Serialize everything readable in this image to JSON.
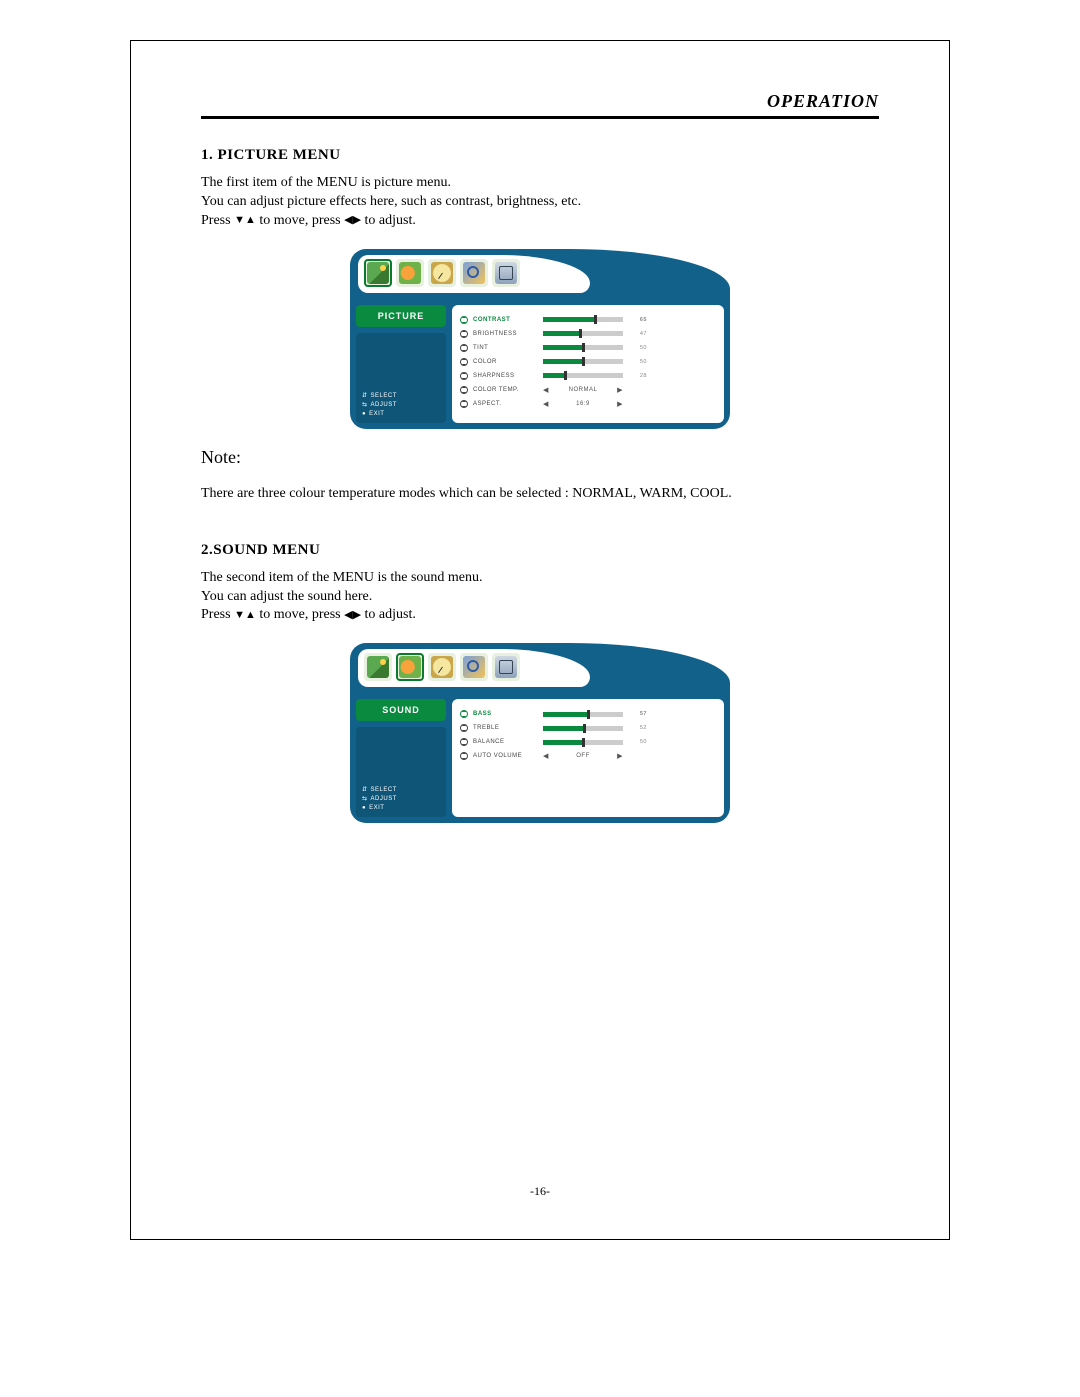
{
  "page": {
    "header": "OPERATION",
    "number": "-16-"
  },
  "section1": {
    "heading": "1. PICTURE MENU",
    "line1": "The first item of the MENU is picture menu.",
    "line2": "You can adjust picture effects here, such as contrast, brightness, etc.",
    "press_a": "Press ",
    "press_b": " to move, press ",
    "press_c": " to adjust."
  },
  "note": {
    "label": "Note:",
    "text": "There are  three colour  temperature modes which can be selected : NORMAL, WARM, COOL."
  },
  "section2": {
    "heading": "2.SOUND MENU",
    "line1": "The second item of the MENU is the sound menu.",
    "line2": "You can adjust the sound here.",
    "press_a": "Press  ",
    "press_b": "  to move, press  ",
    "press_c": "   to adjust."
  },
  "osd": {
    "hints": {
      "select": "SELECT",
      "adjust": "ADJUST",
      "exit": "EXIT"
    },
    "tabs": [
      "picture",
      "sound",
      "clock",
      "function",
      "tv"
    ]
  },
  "picture_menu": {
    "title": "PICTURE",
    "active_tab": 0,
    "rows": [
      {
        "label": "CONTRAST",
        "type": "slider",
        "value": 65,
        "active": true
      },
      {
        "label": "BRIGHTNESS",
        "type": "slider",
        "value": 47
      },
      {
        "label": "TINT",
        "type": "slider",
        "value": 50
      },
      {
        "label": "COLOR",
        "type": "slider",
        "value": 50
      },
      {
        "label": "SHARPNESS",
        "type": "slider",
        "value": 28
      },
      {
        "label": "COLOR TEMP.",
        "type": "choice",
        "text": "NORMAL"
      },
      {
        "label": "ASPECT.",
        "type": "choice",
        "text": "16:9"
      }
    ]
  },
  "sound_menu": {
    "title": "SOUND",
    "active_tab": 1,
    "rows": [
      {
        "label": "BASS",
        "type": "slider",
        "value": 57,
        "active": true
      },
      {
        "label": "TREBLE",
        "type": "slider",
        "value": 52
      },
      {
        "label": "BALANCE",
        "type": "slider",
        "value": 50
      },
      {
        "label": "AUTO VOLUME",
        "type": "choice",
        "text": "OFF"
      }
    ]
  },
  "colors": {
    "osd_bg": "#11618a",
    "accent": "#0a8a3e",
    "slider_track": "#cccccc"
  }
}
